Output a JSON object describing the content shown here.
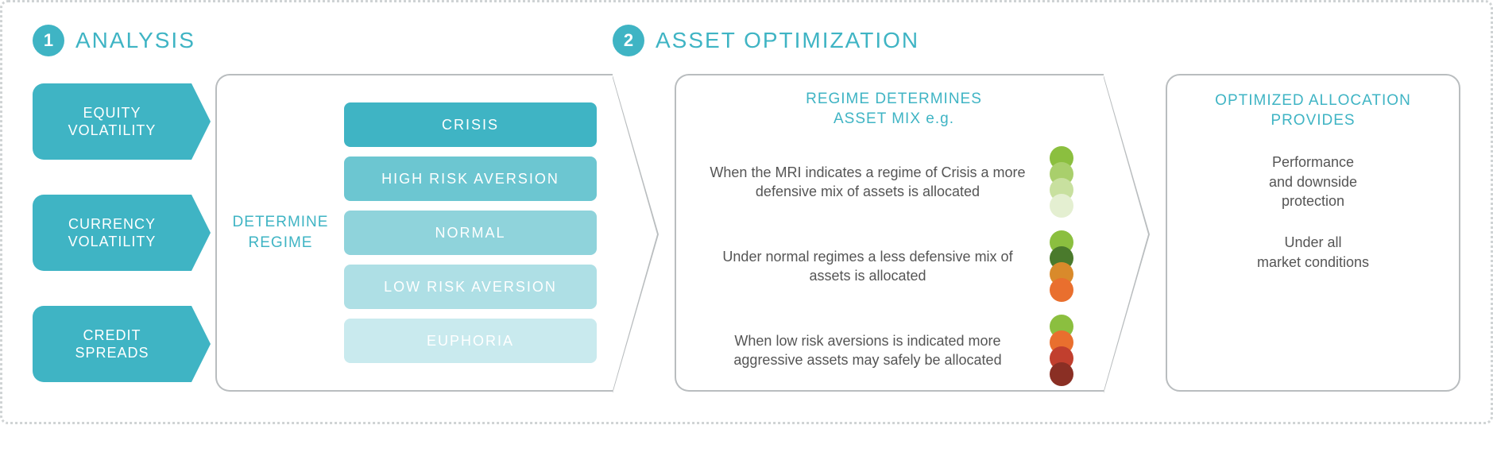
{
  "colors": {
    "brand": "#3fb4c4",
    "brand_dark": "#2a9aad",
    "grey_border": "#b9bdbf",
    "text_grey": "#555"
  },
  "section1": {
    "badge": "1",
    "badge_bg": "#3fb4c4",
    "title": "ANALYSIS",
    "title_color": "#3fb4c4"
  },
  "section2": {
    "badge": "2",
    "badge_bg": "#3fb4c4",
    "title": "ASSET OPTIMIZATION",
    "title_color": "#3fb4c4"
  },
  "inputs": {
    "items": [
      {
        "label": "EQUITY\nVOLATILITY"
      },
      {
        "label": "CURRENCY\nVOLATILITY"
      },
      {
        "label": "CREDIT\nSPREADS"
      }
    ],
    "bg": "#3fb4c4"
  },
  "card1": {
    "determine_label": "DETERMINE\nREGIME",
    "determine_color": "#3fb4c4",
    "regimes": [
      {
        "label": "CRISIS",
        "bg": "#3fb4c4"
      },
      {
        "label": "HIGH RISK AVERSION",
        "bg": "#6cc6d1"
      },
      {
        "label": "NORMAL",
        "bg": "#8fd3db"
      },
      {
        "label": "LOW RISK AVERSION",
        "bg": "#aedfe5"
      },
      {
        "label": "EUPHORIA",
        "bg": "#c9eaee"
      }
    ]
  },
  "card2": {
    "title": "REGIME DETERMINES\nASSET MIX e.g.",
    "title_color": "#3fb4c4",
    "rows": [
      {
        "text": "When the MRI indicates a regime of Crisis a more defensive mix of assets is allocated",
        "dots": [
          "#8bbf3f",
          "#a9cf6c",
          "#c8e09f",
          "#e4efd1"
        ]
      },
      {
        "text": "Under normal regimes a less defensive mix of assets is allocated",
        "dots": [
          "#8bbf3f",
          "#4a7a2c",
          "#d98a2b",
          "#e96f2e"
        ]
      },
      {
        "text": "When low risk aversions is indicated more aggressive assets may safely be allocated",
        "dots": [
          "#8bbf3f",
          "#e96f2e",
          "#c13f2e",
          "#8a2f24"
        ]
      }
    ]
  },
  "card3": {
    "title": "OPTIMIZED ALLOCATION\nPROVIDES",
    "title_color": "#3fb4c4",
    "line1": "Performance\nand downside\nprotection",
    "line2": "Under all\nmarket conditions"
  }
}
